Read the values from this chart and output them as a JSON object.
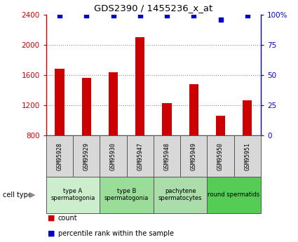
{
  "title": "GDS2390 / 1455236_x_at",
  "samples": [
    "GSM95928",
    "GSM95929",
    "GSM95930",
    "GSM95947",
    "GSM95948",
    "GSM95949",
    "GSM95950",
    "GSM95951"
  ],
  "counts": [
    1680,
    1560,
    1640,
    2100,
    1230,
    1480,
    1060,
    1270
  ],
  "percentiles": [
    99,
    99,
    99,
    99,
    99,
    99,
    96,
    99
  ],
  "ylim_left": [
    800,
    2400
  ],
  "ylim_right": [
    0,
    100
  ],
  "yticks_left": [
    800,
    1200,
    1600,
    2000,
    2400
  ],
  "yticks_right": [
    0,
    25,
    50,
    75,
    100
  ],
  "bar_color": "#cc0000",
  "dot_color": "#0000cc",
  "bar_width": 0.35,
  "cell_groups": [
    {
      "label": "type A\nspermatogonia",
      "indices": [
        0,
        1
      ],
      "color": "#cceecc"
    },
    {
      "label": "type B\nspermatogonia",
      "indices": [
        2,
        3
      ],
      "color": "#99dd99"
    },
    {
      "label": "pachytene\nspermatocytes",
      "indices": [
        4,
        5
      ],
      "color": "#aaddaa"
    },
    {
      "label": "round spermatids",
      "indices": [
        6,
        7
      ],
      "color": "#55cc55"
    }
  ],
  "sample_bg_color": "#d8d8d8",
  "xlabel_color": "#cc0000",
  "ylabel_right_color": "#0000cc",
  "dotted_line_color": "#888888",
  "legend_count_color": "#cc0000",
  "legend_pct_color": "#0000cc",
  "fig_bg": "#ffffff"
}
